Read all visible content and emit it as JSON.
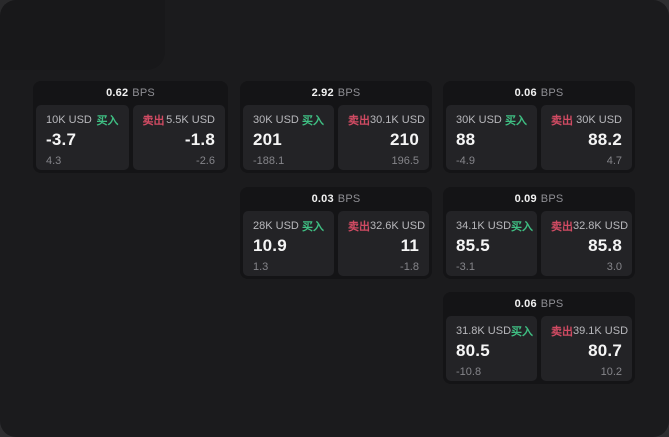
{
  "labels": {
    "buy": "买入",
    "sell": "卖出",
    "bps": "BPS"
  },
  "colors": {
    "window_bg": "#1b1b1d",
    "outside_bg": "#2e2e30",
    "card_bg": "#141416",
    "panel_bg": "#232326",
    "buy_green": "#3fbf83",
    "sell_red": "#d14b63"
  },
  "cards": [
    {
      "bps": "0.62",
      "buy": {
        "size": "10K USD",
        "price": "-3.7",
        "change": "4.3"
      },
      "sell": {
        "size": "5.5K USD",
        "price": "-1.8",
        "change": "-2.6"
      }
    },
    {
      "bps": "2.92",
      "buy": {
        "size": "30K USD",
        "price": "201",
        "change": "-188.1"
      },
      "sell": {
        "size": "30.1K USD",
        "price": "210",
        "change": "196.5"
      }
    },
    {
      "bps": "0.06",
      "buy": {
        "size": "30K USD",
        "price": "88",
        "change": "-4.9"
      },
      "sell": {
        "size": "30K USD",
        "price": "88.2",
        "change": "4.7"
      }
    },
    {
      "bps": "0.03",
      "buy": {
        "size": "28K USD",
        "price": "10.9",
        "change": "1.3"
      },
      "sell": {
        "size": "32.6K USD",
        "price": "11",
        "change": "-1.8"
      }
    },
    {
      "bps": "0.09",
      "buy": {
        "size": "34.1K USD",
        "price": "85.5",
        "change": "-3.1"
      },
      "sell": {
        "size": "32.8K USD",
        "price": "85.8",
        "change": "3.0"
      }
    },
    {
      "bps": "0.06",
      "buy": {
        "size": "31.8K USD",
        "price": "80.5",
        "change": "-10.8"
      },
      "sell": {
        "size": "39.1K USD",
        "price": "80.7",
        "change": "10.2"
      }
    }
  ]
}
